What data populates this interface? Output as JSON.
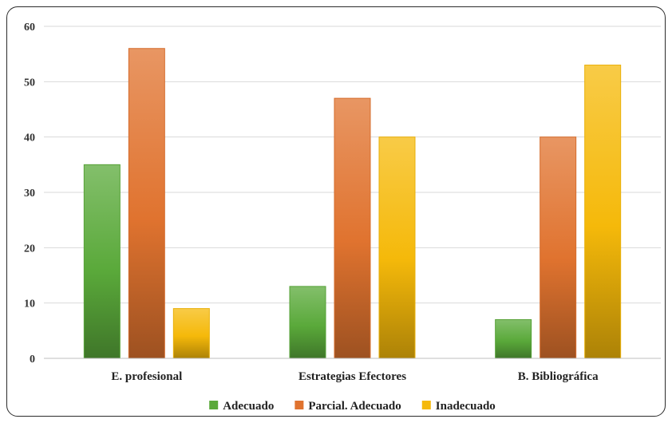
{
  "chart_data": {
    "type": "bar",
    "categories": [
      "E. profesional",
      "Estrategias Efectores",
      "B. Bibliográfica"
    ],
    "series": [
      {
        "name": "Adecuado",
        "values": [
          35,
          13,
          7
        ],
        "color": "#5aa93a"
      },
      {
        "name": "Parcial. Adecuado",
        "values": [
          56,
          47,
          40
        ],
        "color": "#e0732f"
      },
      {
        "name": "Inadecuado",
        "values": [
          9,
          40,
          53
        ],
        "color": "#f5b90a"
      }
    ],
    "ylim": [
      0,
      60
    ],
    "yticks": [
      0,
      10,
      20,
      30,
      40,
      50,
      60
    ],
    "grid": true,
    "legend": "bottom",
    "title": "",
    "xlabel": "",
    "ylabel": ""
  }
}
